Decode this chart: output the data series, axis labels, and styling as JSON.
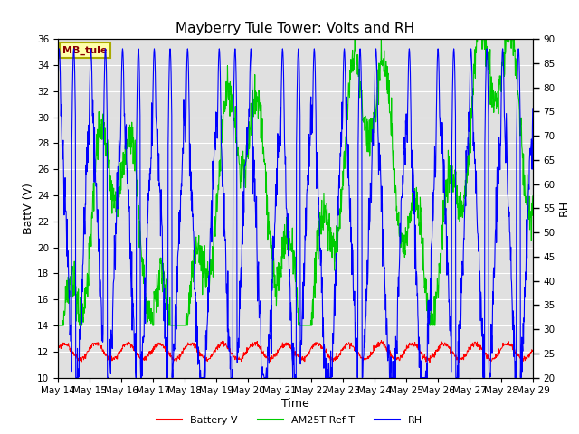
{
  "title": "Mayberry Tule Tower: Volts and RH",
  "xlabel": "Time",
  "ylabel_left": "BattV (V)",
  "ylabel_right": "RH",
  "ylim_left": [
    10,
    36
  ],
  "ylim_right": [
    20,
    90
  ],
  "yticks_left": [
    10,
    12,
    14,
    16,
    18,
    20,
    22,
    24,
    26,
    28,
    30,
    32,
    34,
    36
  ],
  "yticks_right": [
    20,
    25,
    30,
    35,
    40,
    45,
    50,
    55,
    60,
    65,
    70,
    75,
    80,
    85,
    90
  ],
  "xtick_labels": [
    "May 14",
    "May 15",
    "May 16",
    "May 17",
    "May 18",
    "May 19",
    "May 20",
    "May 21",
    "May 22",
    "May 23",
    "May 24",
    "May 25",
    "May 26",
    "May 27",
    "May 28",
    "May 29"
  ],
  "station_label": "MB_tule",
  "background_color": "#ffffff",
  "plot_bg_color": "#e0e0e0",
  "grid_color": "#ffffff",
  "battery_color": "#ff0000",
  "am25t_color": "#00cc00",
  "rh_color": "#0000ff",
  "legend_labels": [
    "Battery V",
    "AM25T Ref T",
    "RH"
  ],
  "title_fontsize": 11,
  "axis_label_fontsize": 9,
  "tick_fontsize": 7.5
}
